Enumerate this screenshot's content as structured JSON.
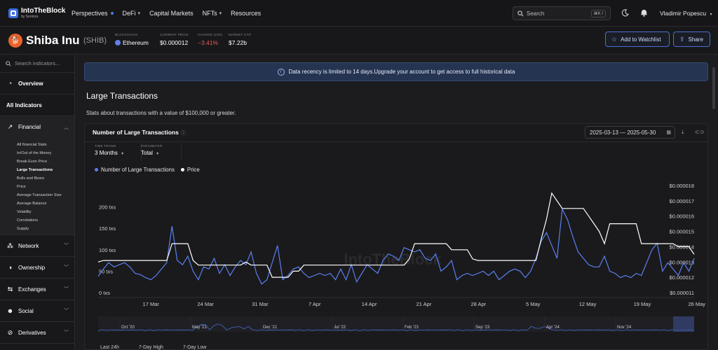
{
  "topbar": {
    "logo_text": "IntoTheBlock",
    "logo_sub": "by Sentora",
    "nav": [
      {
        "label": "Perspectives",
        "marker": "dot"
      },
      {
        "label": "DeFi",
        "marker": "chevron"
      },
      {
        "label": "Capital Markets",
        "marker": ""
      },
      {
        "label": "NFTs",
        "marker": "chevron"
      },
      {
        "label": "Resources",
        "marker": ""
      }
    ],
    "search_placeholder": "Search",
    "search_shortcut": "⌘K /",
    "user_name": "Vladimir Popescu"
  },
  "header": {
    "coin_name": "Shiba Inu",
    "coin_symbol": "(SHIB)",
    "stats": [
      {
        "label": "BLOCKCHAIN",
        "value": "Ethereum"
      },
      {
        "label": "CURRENT PRICE",
        "value": "$0.000012"
      },
      {
        "label": "CHANGE (24H)",
        "value": "−3.41%"
      },
      {
        "label": "MARKET CAP",
        "value": "$7.22b"
      }
    ],
    "watchlist_label": "Add to Watchlist",
    "share_label": "Share"
  },
  "sidebar": {
    "search_placeholder": "Search indicators...",
    "overview": "Overview",
    "all_indicators": "All Indicators",
    "financial": "Financial",
    "financial_items": [
      "All financial Stats",
      "In/Out of the Money",
      "Break Even Price",
      "Large Transactions",
      "Bulls and Bears",
      "Price",
      "Average Transaction Size",
      "Average Balance",
      "Volatility",
      "Correlations",
      "Supply"
    ],
    "active_item": "Large Transactions",
    "sections": [
      "Network",
      "Ownership",
      "Exchanges",
      "Social",
      "Derivatives"
    ]
  },
  "main": {
    "banner": "Data recency is limited to 14 days.Upgrade your account to get access to full historical data",
    "title": "Large Transactions",
    "description": "Stats about transactions with a value of $100,000 or greater.",
    "card_title": "Number of Large Transactions",
    "date_from": "2025-03-13",
    "date_sep": "—",
    "date_to": "2025-05-30",
    "timeframe_label": "TIME FRAME",
    "timeframe_value": "3 Months",
    "parameter_label": "PARAMETER",
    "parameter_value": "Total",
    "legend": [
      "Number of Large Transactions",
      "Price"
    ],
    "bottom_stats": [
      "Last 24h",
      "7-Day High",
      "7-Day Low"
    ]
  },
  "colors": {
    "series_txs": "#5b7ff0",
    "series_price": "#ffffff",
    "accent": "#4e7cf0",
    "negative": "#e85c5c"
  },
  "chart_data": {
    "type": "line",
    "x_ticks": [
      "17 Mar",
      "24 Mar",
      "31 Mar",
      "7 Apr",
      "14 Apr",
      "21 Apr",
      "28 Apr",
      "5 May",
      "12 May",
      "19 May",
      "26 May"
    ],
    "y_left_ticks": [
      "0 txs",
      "50 txs",
      "100 txs",
      "150 txs",
      "200 txs"
    ],
    "y_right_ticks": [
      "$0.000011",
      "$0.000012",
      "$0.000013",
      "$0.000014",
      "$0.000015",
      "$0.000016",
      "$0.000017",
      "$0.000018"
    ],
    "ylim_left": [
      0,
      250
    ],
    "ylim_right": [
      1.1e-05,
      1.8e-05
    ],
    "grid": false,
    "legend_position": "top-left",
    "series": [
      {
        "name": "Number of Large Transactions",
        "axis": "left",
        "values": [
          38,
          55,
          70,
          60,
          65,
          70,
          60,
          45,
          42,
          35,
          30,
          40,
          55,
          70,
          155,
          75,
          65,
          85,
          50,
          30,
          60,
          55,
          80,
          45,
          65,
          40,
          60,
          75,
          65,
          95,
          45,
          20,
          30,
          70,
          110,
          30,
          40,
          55,
          60,
          45,
          35,
          40,
          45,
          40,
          45,
          30,
          55,
          30,
          65,
          25,
          45,
          65,
          55,
          45,
          75,
          90,
          85,
          75,
          105,
          100,
          95,
          100,
          80,
          75,
          90,
          50,
          60,
          75,
          30,
          40,
          45,
          40,
          45,
          50,
          40,
          50,
          30,
          40,
          50,
          55,
          50,
          35,
          50,
          80,
          120,
          140,
          110,
          80,
          195,
          170,
          130,
          95,
          80,
          65,
          60,
          60,
          85,
          50,
          45,
          35,
          40,
          35,
          45,
          40,
          70,
          100,
          115,
          50,
          70,
          55,
          40,
          70,
          50,
          80
        ]
      },
      {
        "name": "Price",
        "axis": "right",
        "values": [
          1.3e-05,
          1.31e-05,
          1.31e-05,
          1.31e-05,
          1.31e-05,
          1.31e-05,
          1.31e-05,
          1.31e-05,
          1.31e-05,
          1.31e-05,
          1.31e-05,
          1.31e-05,
          1.31e-05,
          1.31e-05,
          1.42e-05,
          1.42e-05,
          1.42e-05,
          1.42e-05,
          1.31e-05,
          1.28e-05,
          1.28e-05,
          1.28e-05,
          1.28e-05,
          1.28e-05,
          1.28e-05,
          1.28e-05,
          1.28e-05,
          1.28e-05,
          1.3e-05,
          1.28e-05,
          1.28e-05,
          1.28e-05,
          1.28e-05,
          1.2e-05,
          1.2e-05,
          1.2e-05,
          1.2e-05,
          1.24e-05,
          1.24e-05,
          1.28e-05,
          1.28e-05,
          1.28e-05,
          1.28e-05,
          1.28e-05,
          1.28e-05,
          1.28e-05,
          1.28e-05,
          1.28e-05,
          1.28e-05,
          1.28e-05,
          1.28e-05,
          1.28e-05,
          1.28e-05,
          1.28e-05,
          1.28e-05,
          1.28e-05,
          1.28e-05,
          1.28e-05,
          1.28e-05,
          1.32e-05,
          1.42e-05,
          1.42e-05,
          1.42e-05,
          1.42e-05,
          1.42e-05,
          1.42e-05,
          1.42e-05,
          1.38e-05,
          1.38e-05,
          1.38e-05,
          1.38e-05,
          1.32e-05,
          1.31e-05,
          1.31e-05,
          1.31e-05,
          1.31e-05,
          1.31e-05,
          1.31e-05,
          1.31e-05,
          1.31e-05,
          1.31e-05,
          1.31e-05,
          1.31e-05,
          1.31e-05,
          1.45e-05,
          1.58e-05,
          1.75e-05,
          1.7e-05,
          1.65e-05,
          1.65e-05,
          1.65e-05,
          1.65e-05,
          1.65e-05,
          1.6e-05,
          1.55e-05,
          1.5e-05,
          1.42e-05,
          1.55e-05,
          1.55e-05,
          1.55e-05,
          1.55e-05,
          1.55e-05,
          1.55e-05,
          1.42e-05,
          1.42e-05,
          1.42e-05,
          1.42e-05,
          1.42e-05,
          1.42e-05,
          1.42e-05,
          1.4e-05,
          1.4e-05,
          1.4e-05,
          1.35e-05
        ]
      }
    ],
    "navigator_ticks": [
      "Oct '20",
      "May '21",
      "Dec '21",
      "Jul '22",
      "Feb '23",
      "Sep '23",
      "Apr '24",
      "Nov '24"
    ],
    "watermark": "IntoTheBlock"
  }
}
